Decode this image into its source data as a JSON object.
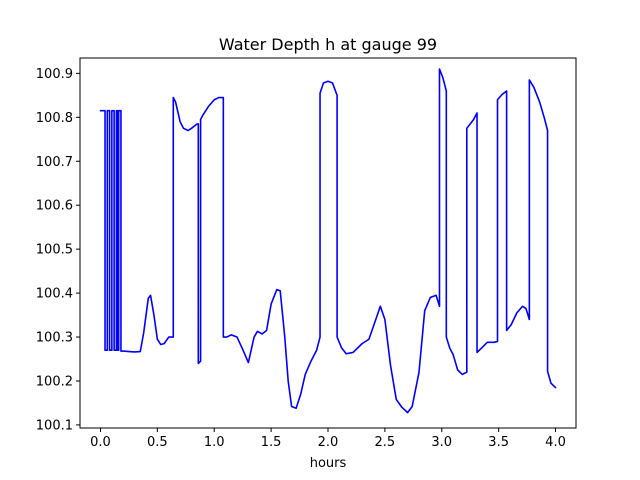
{
  "chart_data": {
    "type": "line",
    "title": "Water Depth h at gauge 99",
    "xlabel": "hours",
    "ylabel": "",
    "xlim": [
      -0.18,
      4.18
    ],
    "ylim": [
      100.093,
      100.935
    ],
    "xticks": [
      0.0,
      0.5,
      1.0,
      1.5,
      2.0,
      2.5,
      3.0,
      3.5,
      4.0
    ],
    "xtick_labels": [
      "0.0",
      "0.5",
      "1.0",
      "1.5",
      "2.0",
      "2.5",
      "3.0",
      "3.5",
      "4.0"
    ],
    "yticks": [
      100.1,
      100.2,
      100.3,
      100.4,
      100.5,
      100.6,
      100.7,
      100.8,
      100.9
    ],
    "ytick_labels": [
      "100.1",
      "100.2",
      "100.3",
      "100.4",
      "100.5",
      "100.6",
      "100.7",
      "100.8",
      "100.9"
    ],
    "grid": false,
    "legend": "none",
    "series": [
      {
        "color": "#0000ff",
        "x": [
          0.0,
          0.04,
          0.04,
          0.06,
          0.06,
          0.08,
          0.08,
          0.1,
          0.1,
          0.12,
          0.12,
          0.14,
          0.14,
          0.15,
          0.15,
          0.16,
          0.16,
          0.18,
          0.18,
          0.2,
          0.3,
          0.35,
          0.38,
          0.42,
          0.44,
          0.47,
          0.5,
          0.53,
          0.56,
          0.6,
          0.64,
          0.64,
          0.66,
          0.7,
          0.73,
          0.77,
          0.8,
          0.85,
          0.86,
          0.86,
          0.88,
          0.88,
          0.9,
          0.95,
          1.0,
          1.04,
          1.08,
          1.08,
          1.11,
          1.15,
          1.2,
          1.25,
          1.3,
          1.35,
          1.38,
          1.42,
          1.46,
          1.5,
          1.55,
          1.58,
          1.62,
          1.65,
          1.68,
          1.72,
          1.76,
          1.8,
          1.85,
          1.9,
          1.93,
          1.93,
          1.96,
          2.0,
          2.04,
          2.08,
          2.08,
          2.12,
          2.16,
          2.22,
          2.3,
          2.36,
          2.42,
          2.46,
          2.5,
          2.55,
          2.6,
          2.65,
          2.7,
          2.74,
          2.8,
          2.85,
          2.9,
          2.95,
          2.98,
          2.98,
          3.01,
          3.04,
          3.04,
          3.07,
          3.1,
          3.14,
          3.18,
          3.22,
          3.22,
          3.28,
          3.31,
          3.31,
          3.35,
          3.4,
          3.46,
          3.49,
          3.49,
          3.53,
          3.57,
          3.57,
          3.61,
          3.66,
          3.71,
          3.74,
          3.77,
          3.77,
          3.81,
          3.86,
          3.9,
          3.93,
          3.93,
          3.96,
          4.0
        ],
        "y": [
          100.815,
          100.815,
          100.27,
          100.27,
          100.815,
          100.815,
          100.27,
          100.27,
          100.815,
          100.815,
          100.27,
          100.27,
          100.815,
          100.815,
          100.27,
          100.27,
          100.815,
          100.815,
          100.268,
          100.268,
          100.266,
          100.267,
          100.31,
          100.388,
          100.395,
          100.35,
          100.295,
          100.283,
          100.285,
          100.3,
          100.3,
          100.845,
          100.835,
          100.79,
          100.775,
          100.77,
          100.775,
          100.785,
          100.785,
          100.24,
          100.245,
          100.795,
          100.805,
          100.825,
          100.84,
          100.845,
          100.845,
          100.3,
          100.3,
          100.305,
          100.3,
          100.272,
          100.242,
          100.3,
          100.313,
          100.307,
          100.315,
          100.375,
          100.408,
          100.405,
          100.3,
          100.2,
          100.142,
          100.138,
          100.17,
          100.215,
          100.245,
          100.27,
          100.3,
          100.855,
          100.878,
          100.882,
          100.878,
          100.85,
          100.3,
          100.275,
          100.262,
          100.265,
          100.285,
          100.295,
          100.34,
          100.37,
          100.34,
          100.235,
          100.158,
          100.14,
          100.128,
          100.142,
          100.22,
          100.36,
          100.39,
          100.395,
          100.37,
          100.91,
          100.89,
          100.86,
          100.3,
          100.275,
          100.26,
          100.225,
          100.215,
          100.22,
          100.775,
          100.795,
          100.81,
          100.265,
          100.275,
          100.288,
          100.288,
          100.29,
          100.84,
          100.852,
          100.86,
          100.315,
          100.328,
          100.355,
          100.37,
          100.365,
          100.34,
          100.885,
          100.868,
          100.835,
          100.8,
          100.77,
          100.222,
          100.195,
          100.185
        ]
      }
    ]
  }
}
